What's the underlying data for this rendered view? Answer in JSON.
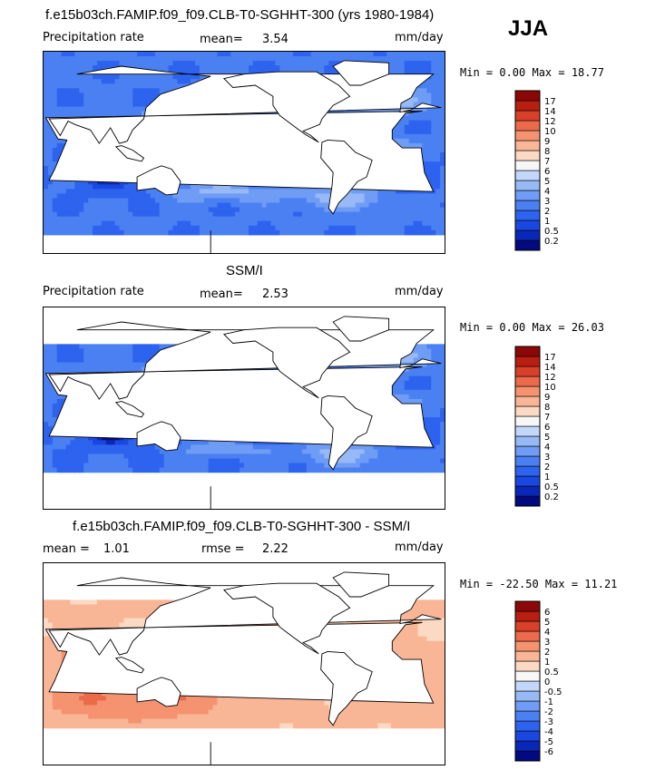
{
  "season": "JJA",
  "panels": [
    {
      "title": "f.e15b03ch.FAMIP.f09_f09.CLB-T0-SGHHT-300 (yrs 1980-1984)",
      "left_label": "Precipitation rate",
      "stat1_label": "mean=",
      "stat1_value": "3.54",
      "stat2_label": "",
      "stat2_value": "",
      "units": "mm/day",
      "minmax": "Min =   0.00 Max =  18.77"
    },
    {
      "title": "SSM/I",
      "left_label": "Precipitation rate",
      "stat1_label": "mean=",
      "stat1_value": "2.53",
      "stat2_label": "",
      "stat2_value": "",
      "units": "mm/day",
      "minmax": "Min =   0.00 Max =  26.03"
    },
    {
      "title": "f.e15b03ch.FAMIP.f09_f09.CLB-T0-SGHHT-300 - SSM/I",
      "left_label": "",
      "stat1_label": "mean =",
      "stat1_value": "1.01",
      "stat2_label": "rmse =",
      "stat2_value": "2.22",
      "units": "mm/day",
      "minmax": "Min = -22.50 Max =  11.21"
    }
  ],
  "chart_data": [
    {
      "type": "heatmap",
      "title": "f.e15b03ch.FAMIP.f09_f09.CLB-T0-SGHHT-300 (yrs 1980-1984)",
      "variable": "Precipitation rate",
      "units": "mm/day",
      "mean": 3.54,
      "min": 0.0,
      "max": 18.77,
      "colorbar_levels": [
        "0.2",
        "0.5",
        "1",
        "2",
        "3",
        "4",
        "5",
        "6",
        "7",
        "8",
        "9",
        "10",
        "12",
        "14",
        "17"
      ],
      "colorbar_colors": [
        "#030a80",
        "#0a28b8",
        "#1a47e0",
        "#2d63ee",
        "#4a80f2",
        "#6f9cf4",
        "#97b9f6",
        "#c2d7fa",
        "#f7f7f7",
        "#fcd9c2",
        "#f9b696",
        "#f59370",
        "#ea6a4a",
        "#d8402a",
        "#b81e12",
        "#8c0808"
      ]
    },
    {
      "type": "heatmap",
      "title": "SSM/I",
      "variable": "Precipitation rate",
      "units": "mm/day",
      "mean": 2.53,
      "min": 0.0,
      "max": 26.03,
      "colorbar_levels": [
        "0.2",
        "0.5",
        "1",
        "2",
        "3",
        "4",
        "5",
        "6",
        "7",
        "8",
        "9",
        "10",
        "12",
        "14",
        "17"
      ],
      "colorbar_colors": [
        "#030a80",
        "#0a28b8",
        "#1a47e0",
        "#2d63ee",
        "#4a80f2",
        "#6f9cf4",
        "#97b9f6",
        "#c2d7fa",
        "#f7f7f7",
        "#fcd9c2",
        "#f9b696",
        "#f59370",
        "#ea6a4a",
        "#d8402a",
        "#b81e12",
        "#8c0808"
      ]
    },
    {
      "type": "heatmap",
      "title": "f.e15b03ch.FAMIP.f09_f09.CLB-T0-SGHHT-300 - SSM/I",
      "units": "mm/day",
      "mean": 1.01,
      "rmse": 2.22,
      "min": -22.5,
      "max": 11.21,
      "colorbar_levels": [
        "-6",
        "-5",
        "-4",
        "-3",
        "-2",
        "-1",
        "-0.5",
        "0",
        "0.5",
        "1",
        "2",
        "3",
        "4",
        "5",
        "6"
      ],
      "colorbar_colors": [
        "#030a80",
        "#0a28b8",
        "#1a47e0",
        "#2d63ee",
        "#4a80f2",
        "#6f9cf4",
        "#97b9f6",
        "#c2d7fa",
        "#f7f7f7",
        "#fcd9c2",
        "#f9b696",
        "#f59370",
        "#ea6a4a",
        "#d8402a",
        "#b81e12",
        "#8c0808"
      ]
    }
  ]
}
